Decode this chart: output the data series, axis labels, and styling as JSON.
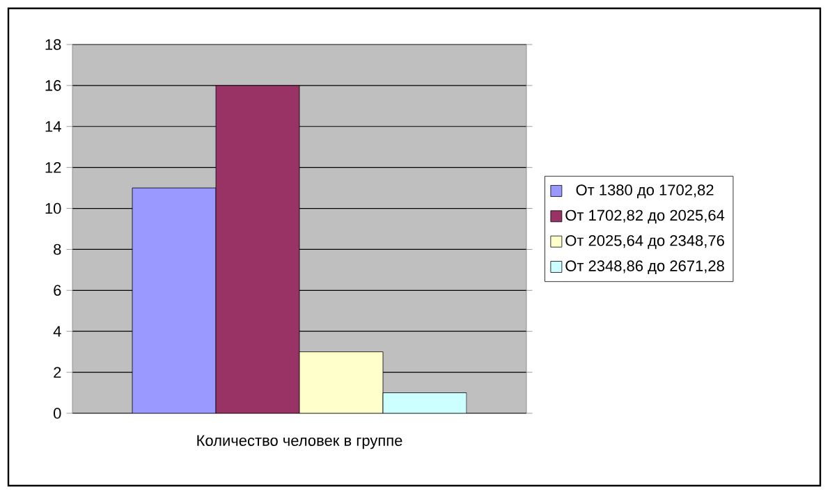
{
  "chart_data": {
    "type": "bar",
    "categories": [
      "Количество человек в группе"
    ],
    "series": [
      {
        "name": "От 1380 до 1702,82",
        "color": "#9999ff",
        "values": [
          11
        ]
      },
      {
        "name": "От 1702,82 до 2025,64",
        "color": "#993366",
        "values": [
          16
        ]
      },
      {
        "name": "От 2025,64 до 2348,76",
        "color": "#ffffcc",
        "values": [
          3
        ]
      },
      {
        "name": "От 2348,86 до 2671,28",
        "color": "#ccffff",
        "values": [
          1
        ]
      }
    ],
    "ylim": [
      0,
      18
    ],
    "yticks": [
      0,
      2,
      4,
      6,
      8,
      10,
      12,
      14,
      16,
      18
    ],
    "grid": "y",
    "legend": "right"
  }
}
